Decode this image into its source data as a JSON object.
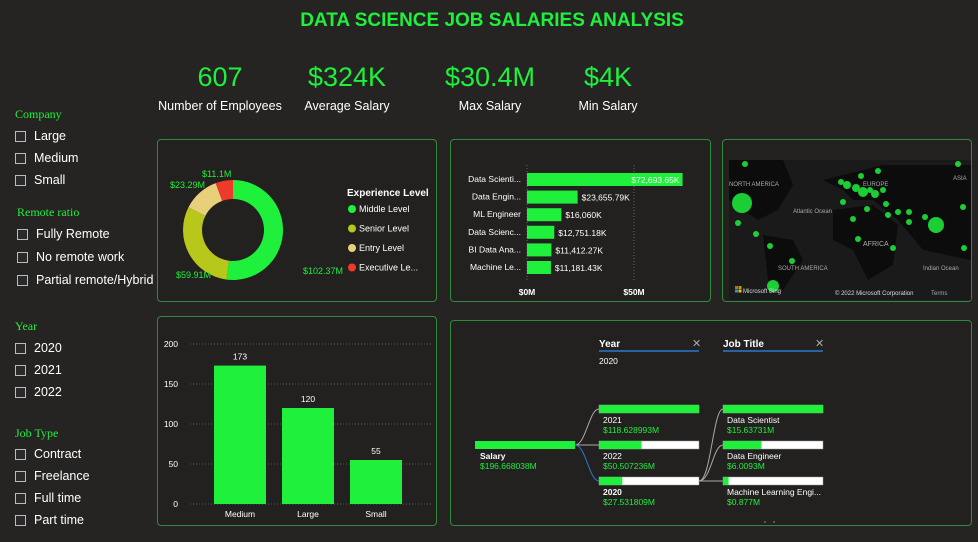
{
  "title": "DATA SCIENCE JOB SALARIES ANALYSIS",
  "kpis": [
    {
      "value": "607",
      "label": "Number of Employees"
    },
    {
      "value": "$324K",
      "label": "Average Salary"
    },
    {
      "value": "$30.4M",
      "label": "Max Salary"
    },
    {
      "value": "$4K",
      "label": "Min Salary"
    }
  ],
  "filters": {
    "company": {
      "title": "Company",
      "options": [
        "Large",
        "Medium",
        "Small"
      ]
    },
    "remote": {
      "title": "Remote ratio",
      "options": [
        "Fully Remote",
        "No remote work",
        "Partial remote/Hybrid"
      ]
    },
    "year": {
      "title": "Year",
      "options": [
        "2020",
        "2021",
        "2022"
      ]
    },
    "job_type": {
      "title": "Job Type",
      "options": [
        "Contract",
        "Freelance",
        "Full time",
        "Part time"
      ]
    }
  },
  "colors": {
    "accent": "#1ef03c",
    "senior": "#b7c81a",
    "entry": "#e8d07a",
    "executive": "#ee3a2a",
    "border": "#2e8b3a"
  },
  "chart_data": [
    {
      "type": "pie",
      "variant": "donut",
      "legend_title": "Experience Level",
      "legend_position": "right",
      "categories": [
        "Middle Level",
        "Senior Level",
        "Entry Level",
        "Executive Le..."
      ],
      "values": [
        102.37,
        59.91,
        23.29,
        11.1
      ],
      "data_labels": [
        "$102.37M",
        "$59.91M",
        "$23.29M",
        "$11.1M"
      ],
      "colors": [
        "#1ef03c",
        "#b7c81a",
        "#e8d07a",
        "#ee3a2a"
      ]
    },
    {
      "type": "bar",
      "orientation": "horizontal",
      "categories": [
        "Data Scienti...",
        "Data Engin...",
        "ML Engineer",
        "Data Scienc...",
        "BI Data Ana...",
        "Machine Le..."
      ],
      "values": [
        72693.65,
        23655.79,
        16060,
        12751.18,
        11412.27,
        11181.43
      ],
      "data_labels": [
        "$72,693.65K",
        "$23,655.79K",
        "$16,060K",
        "$12,751.18K",
        "$11,412.27K",
        "$11,181.43K"
      ],
      "xticks": [
        "$0M",
        "$50M"
      ],
      "xlim": [
        0,
        75000
      ],
      "grid": true
    },
    {
      "type": "bar",
      "categories": [
        "Medium",
        "Large",
        "Small"
      ],
      "values": [
        173,
        120,
        55
      ],
      "yticks": [
        "0",
        "50",
        "100",
        "150",
        "200"
      ],
      "ylim": [
        0,
        200
      ],
      "grid": true
    }
  ],
  "map": {
    "labels": [
      "NORTH AMERICA",
      "Atlantic Ocean",
      "EUROPE",
      "ASIA",
      "AFRICA",
      "SOUTH AMERICA",
      "Indian Ocean"
    ],
    "brand": "Microsoft Bing",
    "copyright": "© 2022 Microsoft Corporation",
    "terms": "Terms"
  },
  "tree": {
    "headers": [
      {
        "title": "Year",
        "sub": "2020"
      },
      {
        "title": "Job Title"
      }
    ],
    "root": {
      "label": "Salary",
      "value": "$196.668038M"
    },
    "years": [
      {
        "label": "2021",
        "value": "$118.628993M",
        "fill": 1.0
      },
      {
        "label": "2022",
        "value": "$50.507236M",
        "fill": 0.426
      },
      {
        "label": "2020",
        "value": "$27.531809M",
        "fill": 0.232
      }
    ],
    "jobs": [
      {
        "label": "Data Scientist",
        "value": "$15.63731M",
        "fill": 1.0
      },
      {
        "label": "Data Engineer",
        "value": "$6.0093M",
        "fill": 0.384
      },
      {
        "label": "Machine Learning Engi...",
        "value": "$0.877M",
        "fill": 0.056
      }
    ]
  }
}
